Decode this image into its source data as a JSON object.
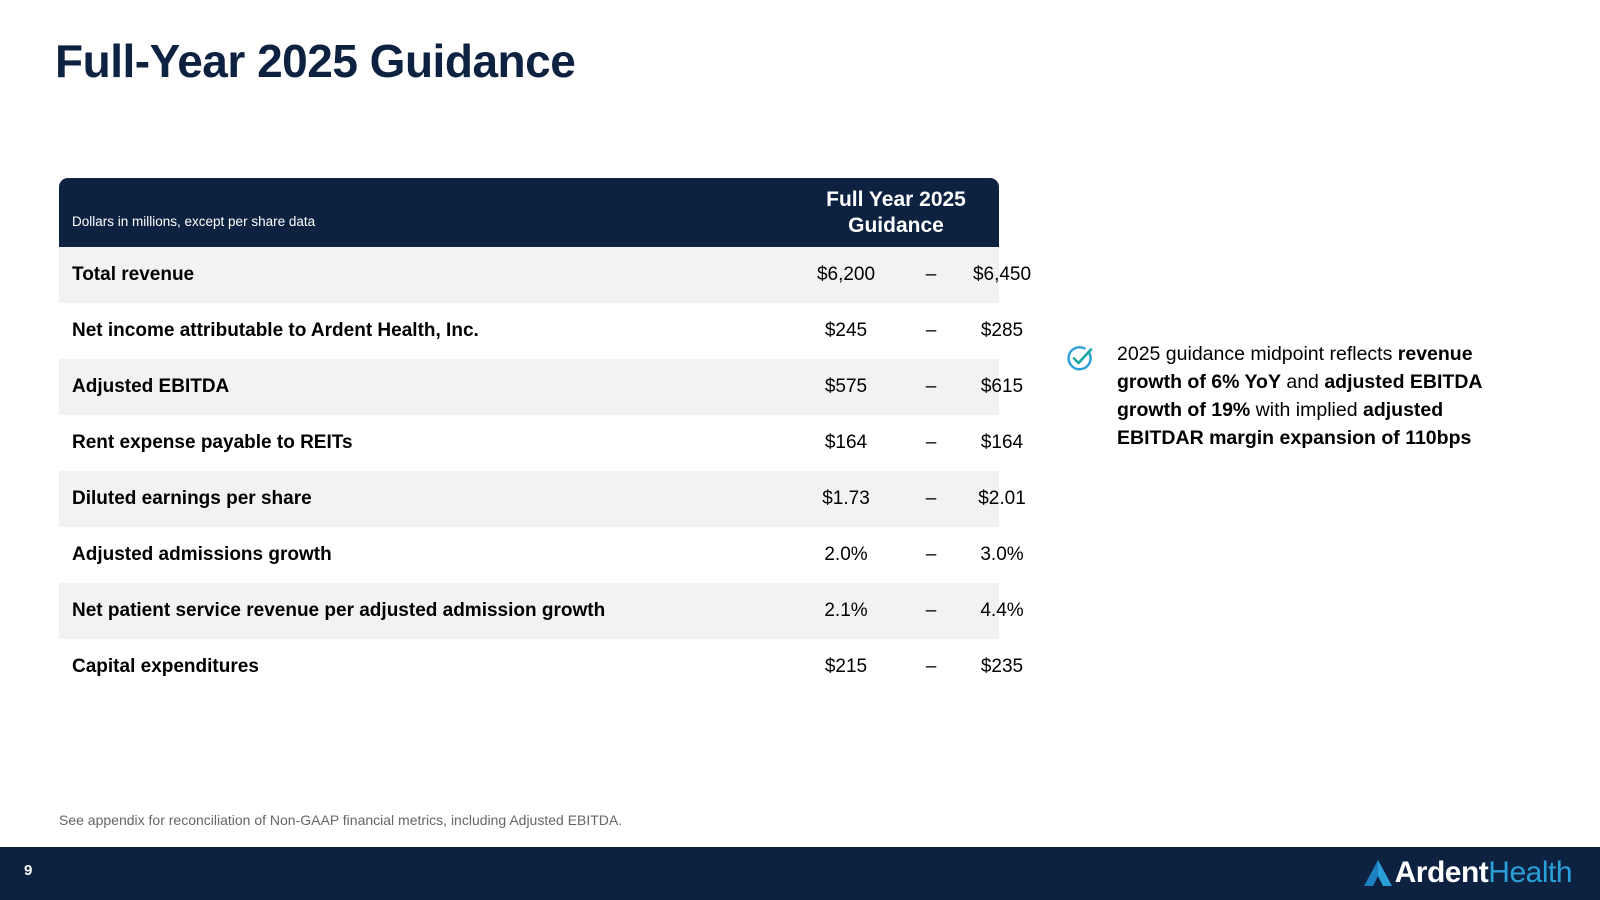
{
  "slide": {
    "title": "Full-Year 2025 Guidance",
    "page_number": "9",
    "footnote": "See appendix for reconciliation of Non-GAAP financial metrics, including Adjusted EBITDA."
  },
  "table": {
    "units_note": "Dollars in millions, except per share data",
    "column_header_line1": "Full Year 2025",
    "column_header_line2": "Guidance",
    "dash": "–",
    "rows": [
      {
        "label": "Total revenue",
        "low": "$6,200",
        "high": "$6,450"
      },
      {
        "label": "Net income attributable to Ardent Health, Inc.",
        "low": "$245",
        "high": "$285"
      },
      {
        "label": "Adjusted EBITDA",
        "low": "$575",
        "high": "$615"
      },
      {
        "label": "Rent expense payable to REITs",
        "low": "$164",
        "high": "$164"
      },
      {
        "label": "Diluted earnings per share",
        "low": "$1.73",
        "high": "$2.01"
      },
      {
        "label": "Adjusted admissions growth",
        "low": "2.0%",
        "high": "3.0%"
      },
      {
        "label": "Net patient service revenue per adjusted admission growth",
        "low": "2.1%",
        "high": "4.4%"
      },
      {
        "label": "Capital expenditures",
        "low": "$215",
        "high": "$235"
      }
    ]
  },
  "callout": {
    "icon": "check-circle-icon",
    "parts": [
      {
        "text": "2025 guidance midpoint reflects ",
        "bold": false
      },
      {
        "text": "revenue growth of 6% YoY",
        "bold": true
      },
      {
        "text": " and ",
        "bold": false
      },
      {
        "text": "adjusted EBITDA growth of 19%",
        "bold": true
      },
      {
        "text": " with implied ",
        "bold": false
      },
      {
        "text": "adjusted EBITDAR margin expansion of 110bps",
        "bold": true
      }
    ]
  },
  "logo": {
    "word1": "Ardent",
    "word2": "Health",
    "colors": {
      "navy": "#0d2240",
      "blue": "#2a9fd8",
      "teal": "#1ba6a6"
    }
  }
}
